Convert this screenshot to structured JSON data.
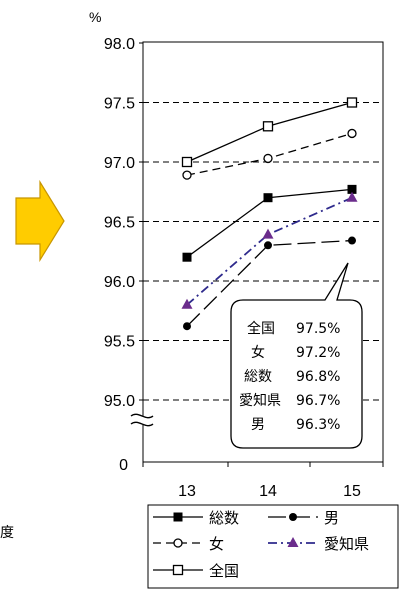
{
  "colors": {
    "arrow_fill": "#FFCC00",
    "arrow_stroke": "#C89600",
    "aichi": "#2E2A8C",
    "aichi_marker": "#6B2C8C",
    "line": "#000000",
    "grid": "#000000"
  },
  "left_label": "度",
  "chart_data": {
    "type": "line",
    "ylabel": "%",
    "x": [
      "13",
      "14",
      "15"
    ],
    "yticks": [
      "98.0",
      "97.5",
      "97.0",
      "96.5",
      "96.0",
      "95.5",
      "95.0"
    ],
    "y_zero_label": "0",
    "ylim": [
      95.0,
      98.0
    ],
    "axis_break": true,
    "grid": "dashed horizontal",
    "series": [
      {
        "name": "総数",
        "values": [
          96.2,
          96.7,
          96.77
        ],
        "style": "solid",
        "marker": "filled-square"
      },
      {
        "name": "男",
        "values": [
          95.62,
          96.3,
          96.34
        ],
        "style": "dash-gap",
        "marker": "filled-circle"
      },
      {
        "name": "女",
        "values": [
          96.89,
          97.03,
          97.24
        ],
        "style": "dashed",
        "marker": "open-circle"
      },
      {
        "name": "愛知県",
        "values": [
          95.8,
          96.39,
          96.7
        ],
        "style": "dash-dot",
        "marker": "filled-triangle"
      },
      {
        "name": "全国",
        "values": [
          97.0,
          97.3,
          97.5
        ],
        "style": "solid",
        "marker": "open-square"
      }
    ],
    "callout": [
      {
        "name": "全国",
        "value": "97.5%"
      },
      {
        "name": "女",
        "value": "97.2%"
      },
      {
        "name": "総数",
        "value": "96.8%"
      },
      {
        "name": "愛知県",
        "value": "96.7%"
      },
      {
        "name": "男",
        "value": "96.3%"
      }
    ]
  }
}
